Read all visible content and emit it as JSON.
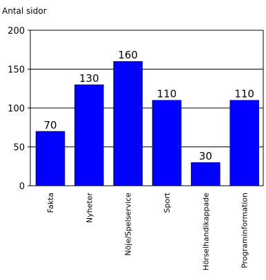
{
  "chart_data": {
    "type": "bar",
    "ylabel": "Antal sidor",
    "ylim": [
      0,
      200
    ],
    "yticks": [
      0,
      50,
      100,
      150,
      200
    ],
    "grid": true,
    "categories": [
      "Fakta",
      "Nyheter",
      "Nöje/Spelservice",
      "Sport",
      "Hörselhandikappade",
      "Programinformation"
    ],
    "values": [
      70,
      130,
      160,
      110,
      30,
      110
    ],
    "bar_color": "#0000ff"
  }
}
